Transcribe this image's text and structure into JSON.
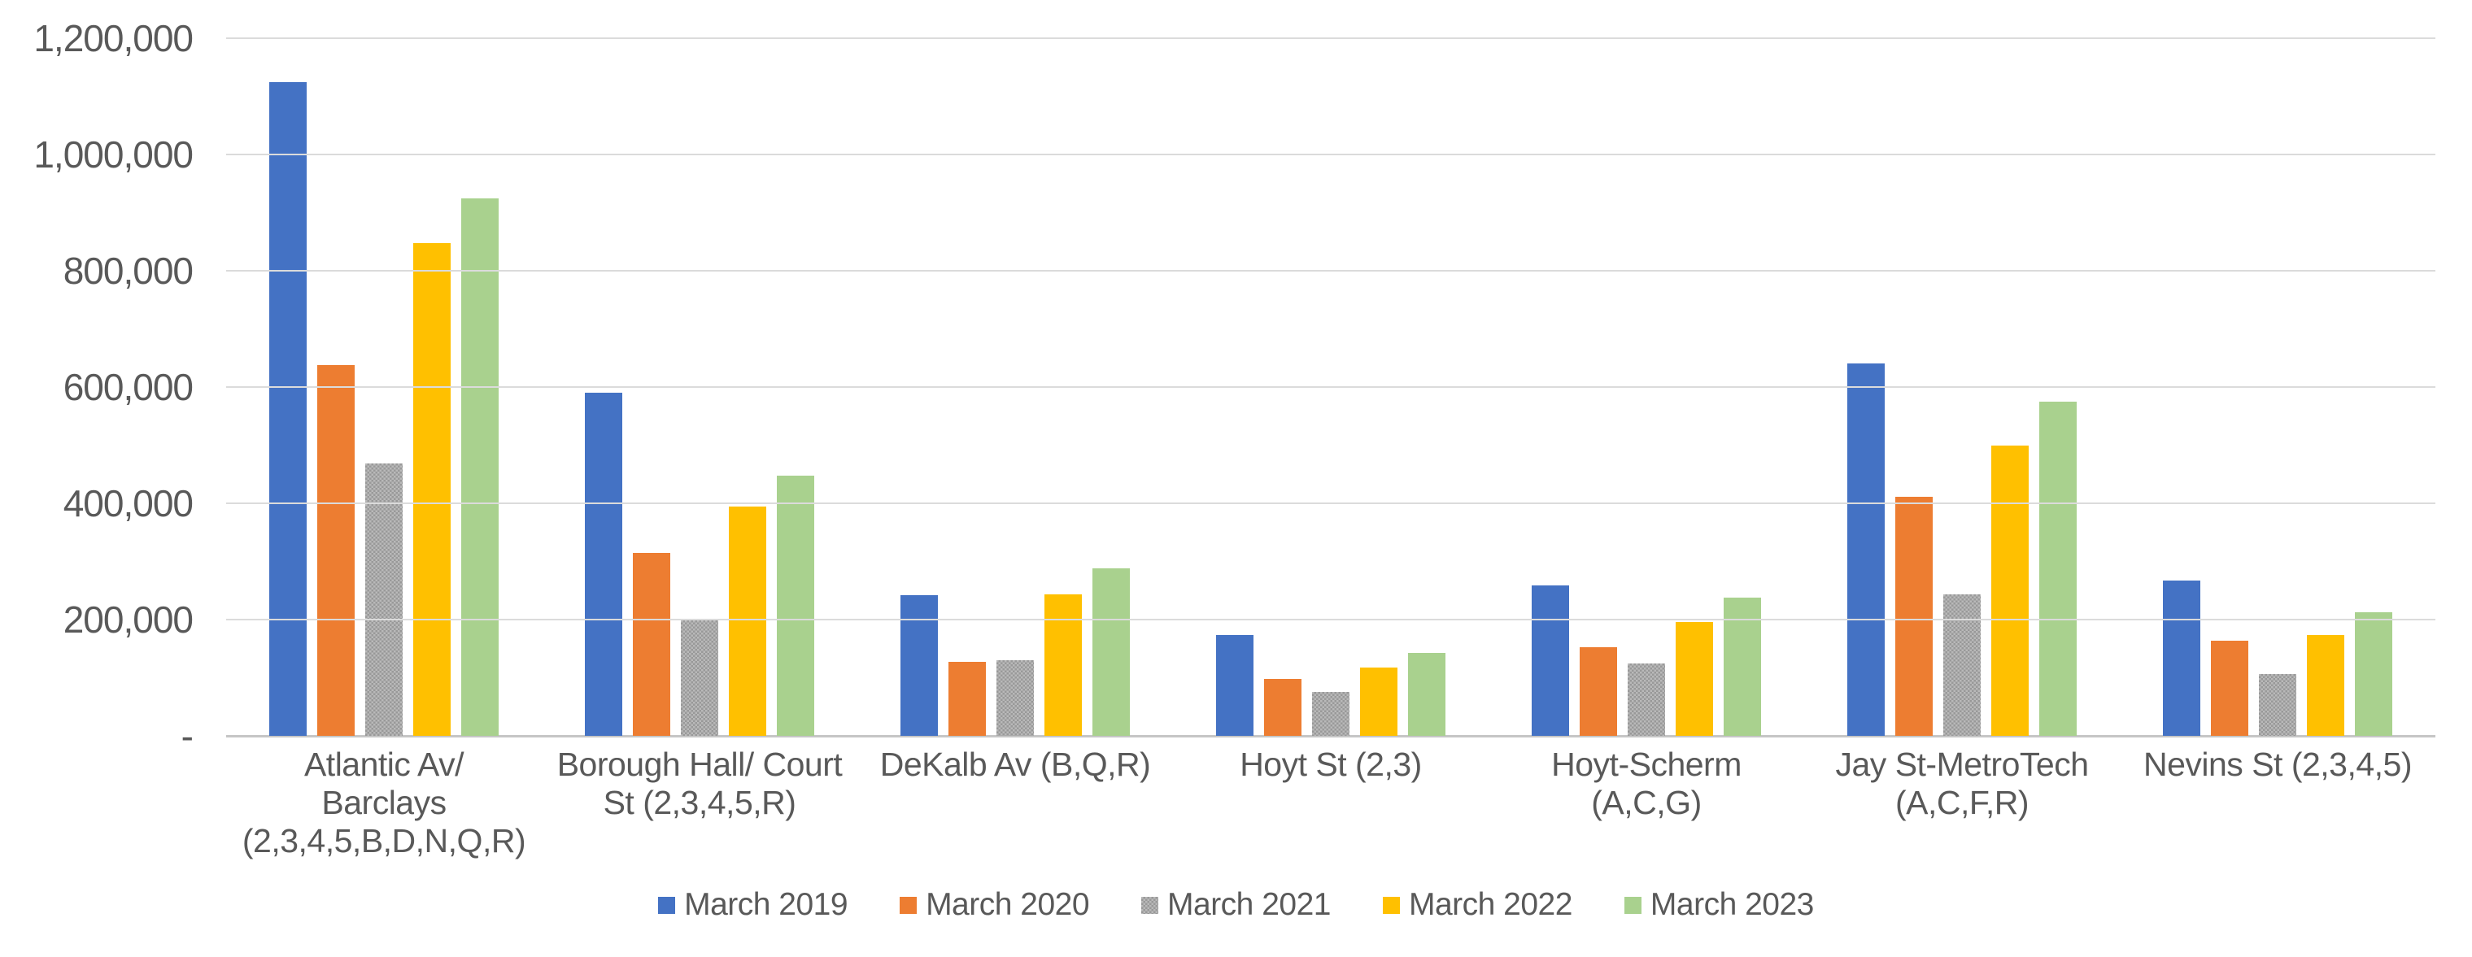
{
  "chart_data": {
    "type": "bar",
    "title": "",
    "xlabel": "",
    "ylabel": "",
    "ylim": [
      0,
      1200000
    ],
    "grid": true,
    "legend_position": "bottom",
    "axis_text_color": "#595959",
    "gridline_color": "#DBDBDB",
    "axis_line_color": "#C6C6C6",
    "y_ticks": [
      {
        "label": "1,200,000",
        "value": 1200000
      },
      {
        "label": "1,000,000",
        "value": 1000000
      },
      {
        "label": "800,000",
        "value": 800000
      },
      {
        "label": "600,000",
        "value": 600000
      },
      {
        "label": "400,000",
        "value": 400000
      },
      {
        "label": "200,000",
        "value": 200000
      },
      {
        "label": "-",
        "value": 0
      }
    ],
    "categories": [
      {
        "id": "atlantic-av-barclays",
        "lines": [
          "Atlantic Av/",
          "Barclays",
          "(2,3,4,5,B,D,N,Q,R)"
        ]
      },
      {
        "id": "borough-hall-court-st",
        "lines": [
          "Borough Hall/ Court",
          "St (2,3,4,5,R)"
        ]
      },
      {
        "id": "dekalb-av",
        "lines": [
          "DeKalb Av (B,Q,R)"
        ]
      },
      {
        "id": "hoyt-st",
        "lines": [
          "Hoyt St (2,3)"
        ]
      },
      {
        "id": "hoyt-scherm",
        "lines": [
          "Hoyt-Scherm",
          "(A,C,G)"
        ]
      },
      {
        "id": "jay-st-metrotech",
        "lines": [
          "Jay St-MetroTech",
          "(A,C,F,R)"
        ]
      },
      {
        "id": "nevins-st",
        "lines": [
          "Nevins St (2,3,4,5)"
        ]
      }
    ],
    "series": [
      {
        "name": "March 2019",
        "color": "#4472C4",
        "values": [
          1125000,
          590000,
          242000,
          173000,
          259000,
          640000,
          267000
        ]
      },
      {
        "name": "March 2020",
        "color": "#ED7D31",
        "values": [
          638000,
          315000,
          127000,
          98000,
          153000,
          411000,
          163000
        ]
      },
      {
        "name": "March 2021",
        "color": "#A6A6A6",
        "pattern": "checker",
        "pattern_colors": [
          "#999999",
          "#B9B9B9"
        ],
        "values": [
          468000,
          199000,
          130000,
          75000,
          124000,
          243000,
          107000
        ]
      },
      {
        "name": "March 2022",
        "color": "#FFC000",
        "values": [
          848000,
          394000,
          243000,
          117000,
          196000,
          500000,
          173000
        ]
      },
      {
        "name": "March 2023",
        "color": "#A9D18E",
        "values": [
          925000,
          448000,
          288000,
          142000,
          238000,
          575000,
          213000
        ]
      }
    ]
  }
}
